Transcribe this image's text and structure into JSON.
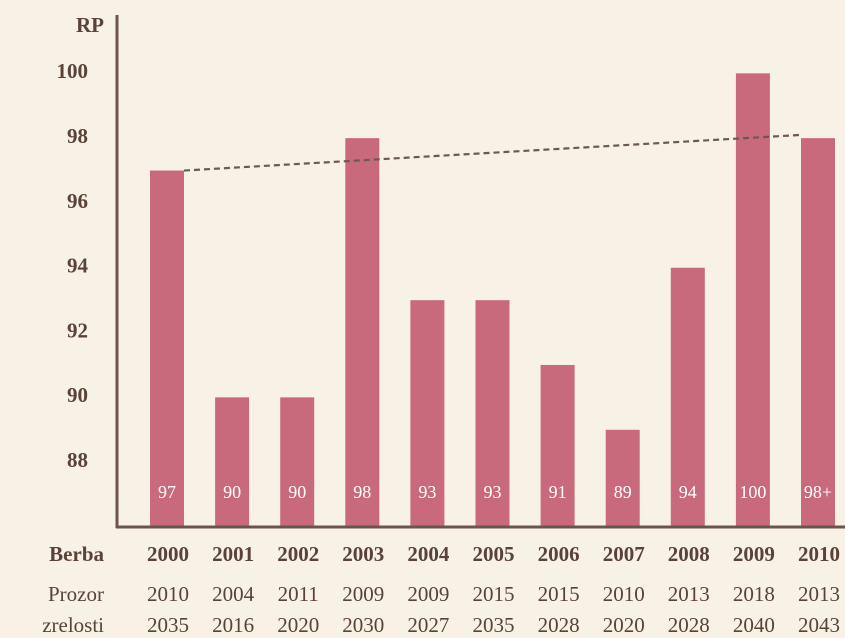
{
  "chart_data": {
    "type": "bar",
    "y_label": "RP",
    "categories": [
      "2000",
      "2001",
      "2002",
      "2003",
      "2004",
      "2005",
      "2006",
      "2007",
      "2008",
      "2009",
      "2010"
    ],
    "values": [
      97,
      90,
      90,
      98,
      93,
      93,
      91,
      89,
      94,
      100,
      98
    ],
    "value_labels": [
      "97",
      "90",
      "90",
      "98",
      "93",
      "93",
      "91",
      "89",
      "94",
      "100",
      "98+"
    ],
    "color": "#c96a7c",
    "ylim": [
      86,
      101.8
    ],
    "yticks": [
      88,
      90,
      92,
      94,
      96,
      98,
      100
    ],
    "trend": {
      "values": [
        97,
        98.1
      ],
      "color": "#6b5a52"
    },
    "x_label": "Berba",
    "window_label": [
      "Prozor",
      "zrelosti"
    ],
    "window_from": [
      2010,
      2004,
      2011,
      2009,
      2009,
      2015,
      2015,
      2010,
      2013,
      2018,
      2013
    ],
    "window_to": [
      2035,
      2016,
      2020,
      2030,
      2027,
      2035,
      2028,
      2020,
      2028,
      2040,
      2043
    ]
  }
}
